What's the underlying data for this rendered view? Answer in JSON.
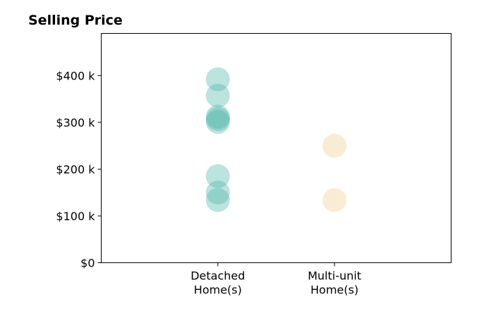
{
  "chart_data": {
    "type": "scatter",
    "title": "Selling Price",
    "xlabel": "",
    "ylabel": "",
    "categories": [
      "Detached\nHome(s)",
      "Multi-unit\nHome(s)"
    ],
    "xlim": [
      -1,
      2
    ],
    "ylim": [
      0,
      490000
    ],
    "yticks": [
      0,
      100000,
      200000,
      300000,
      400000
    ],
    "yticklabels": [
      "$0",
      "$100 k",
      "$200 k",
      "$300 k",
      "$400 k"
    ],
    "grid": false,
    "legend": "none",
    "series": [
      {
        "color": "#4fb5a7",
        "opacity": 0.38,
        "category_index": 0,
        "values": [
          392000,
          357000,
          312000,
          307000,
          301000,
          185000,
          150000,
          134000
        ]
      },
      {
        "color": "#f0d8a0",
        "opacity": 0.45,
        "category_index": 1,
        "values": [
          250000,
          134000
        ]
      }
    ]
  }
}
